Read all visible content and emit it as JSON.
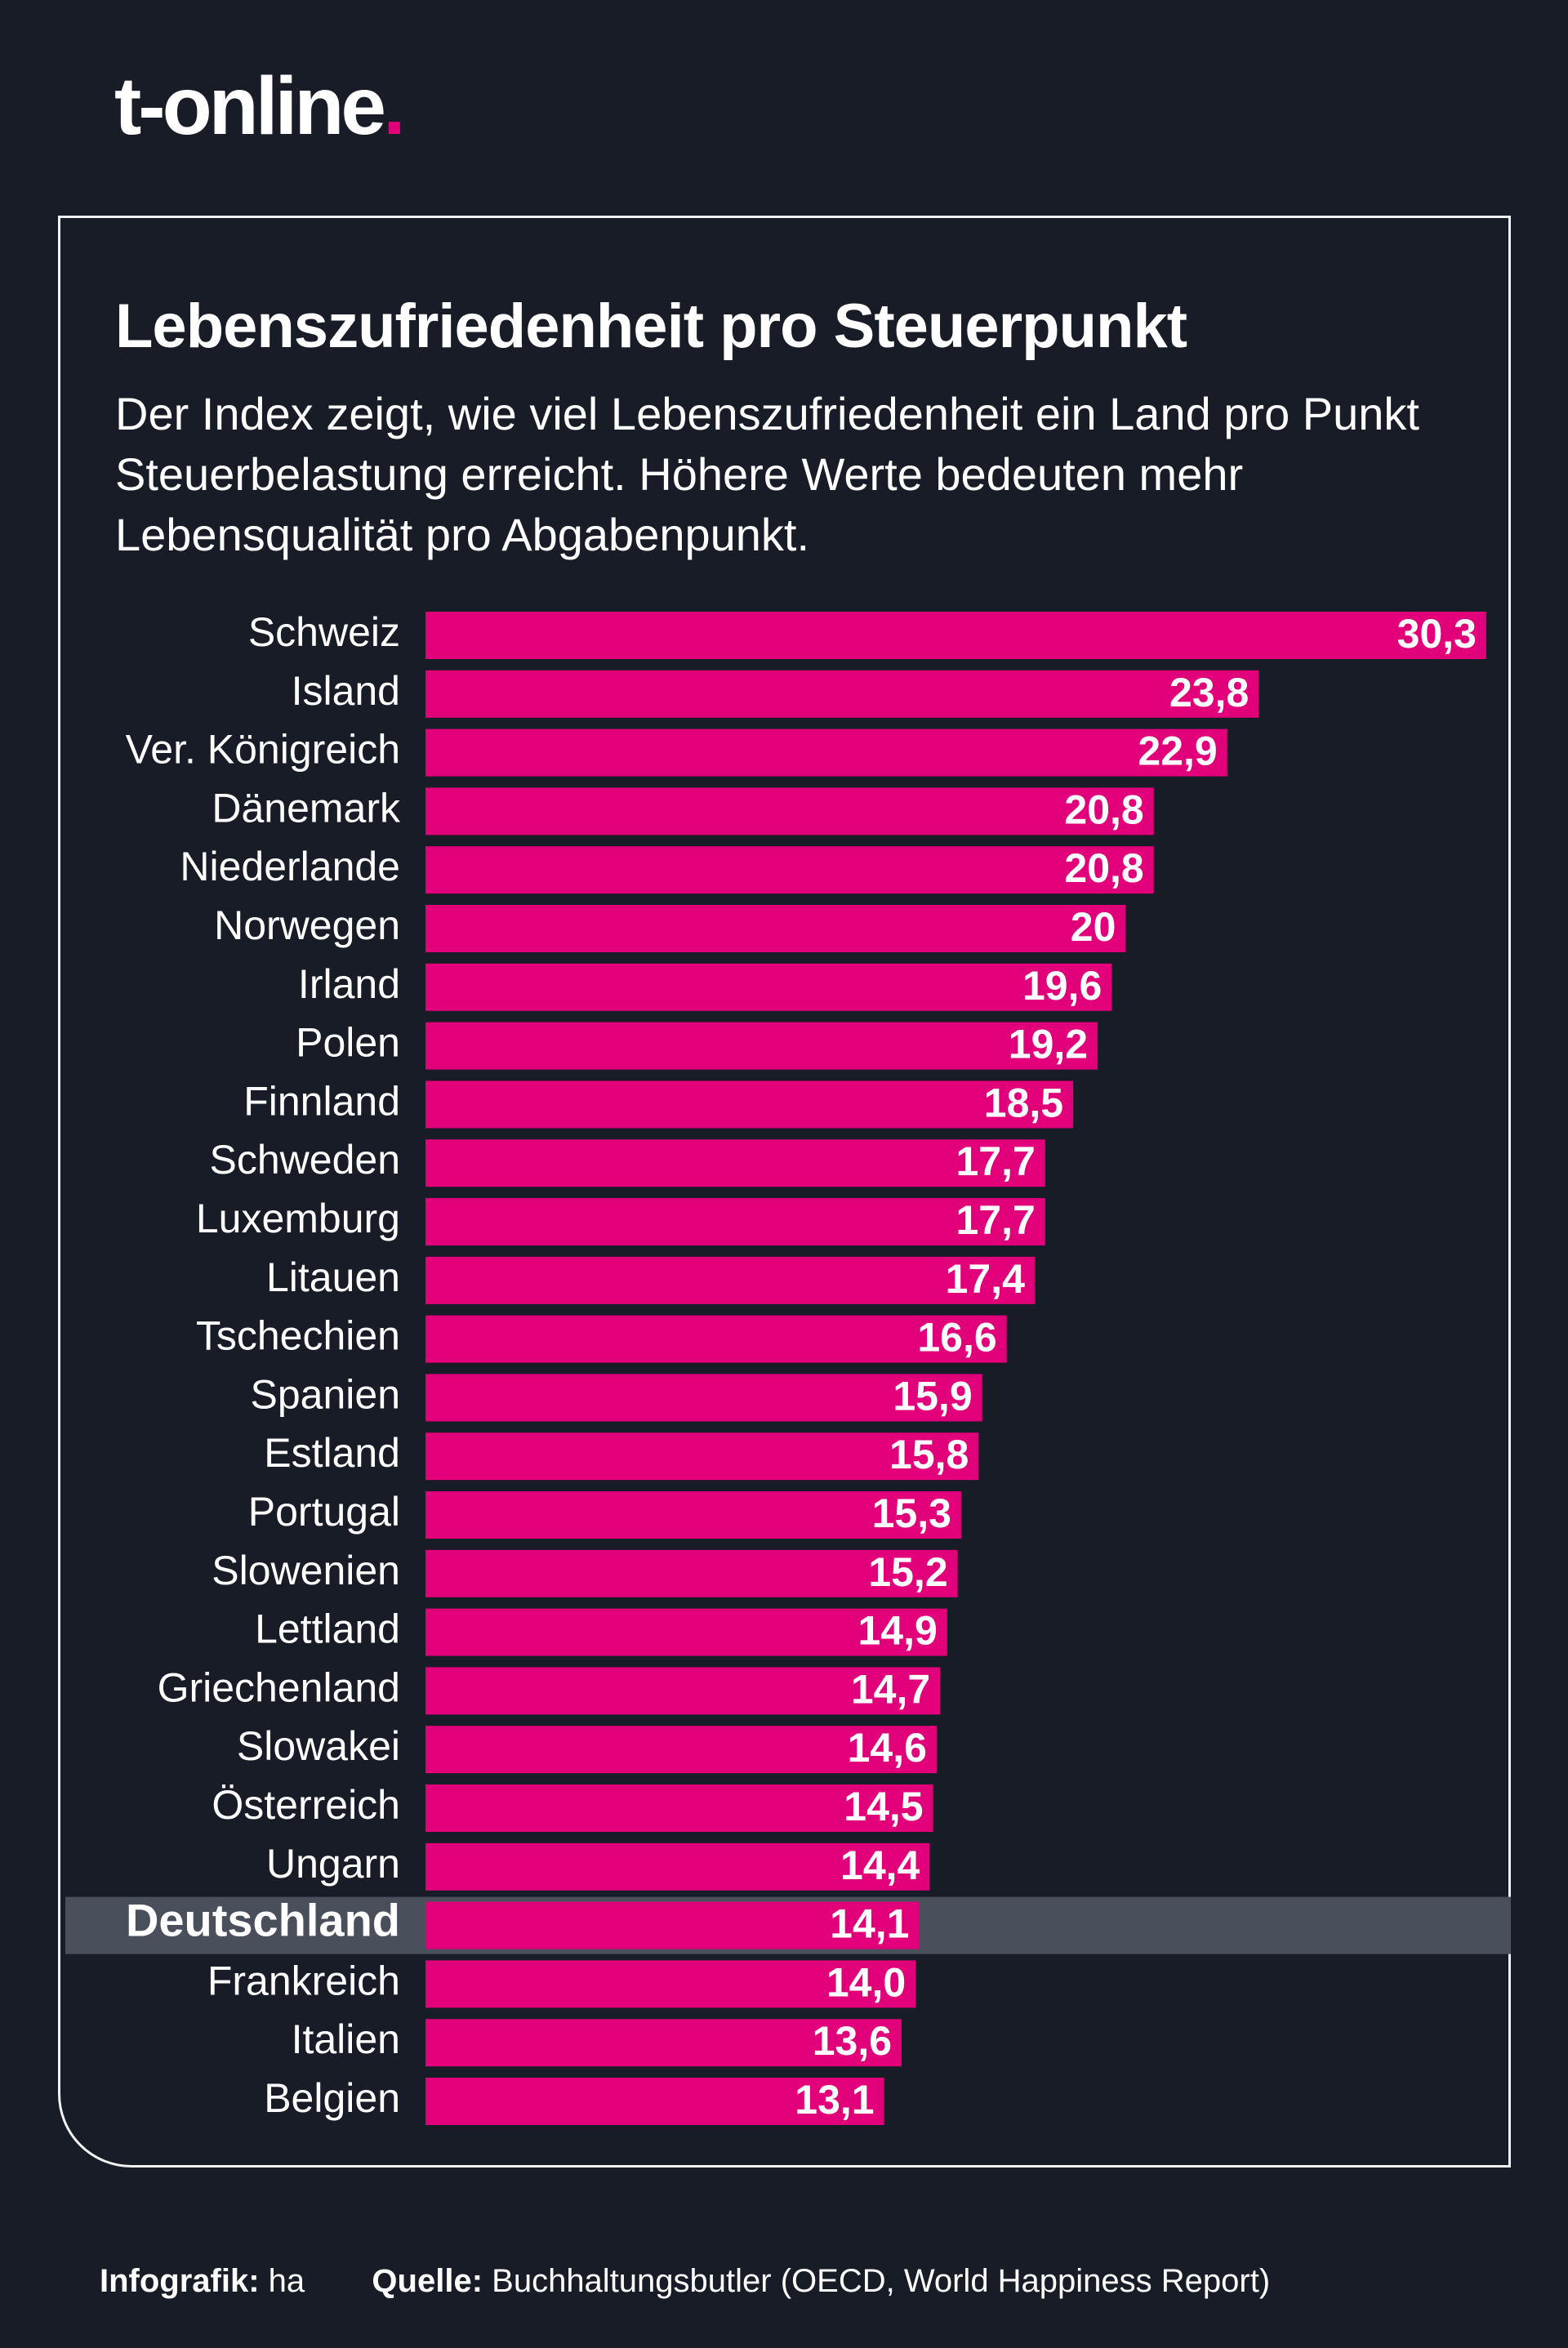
{
  "brand": {
    "name": "t-online",
    "dot": ".",
    "accent": "#e2007a"
  },
  "chart_data": {
    "type": "bar",
    "orientation": "horizontal",
    "title": "Lebenszufriedenheit pro Steuerpunkt",
    "subtitle": "Der Index zeigt, wie viel Lebenszufriedenheit ein Land pro Punkt Steuerbelastung erreicht. Höhere Werte bedeuten mehr Lebensqualität pro Abgabenpunkt.",
    "categories": [
      "Schweiz",
      "Island",
      "Ver. Königreich",
      "Dänemark",
      "Niederlande",
      "Norwegen",
      "Irland",
      "Polen",
      "Finnland",
      "Schweden",
      "Luxemburg",
      "Litauen",
      "Tschechien",
      "Spanien",
      "Estland",
      "Portugal",
      "Slowenien",
      "Lettland",
      "Griechenland",
      "Slowakei",
      "Österreich",
      "Ungarn",
      "Deutschland",
      "Frankreich",
      "Italien",
      "Belgien"
    ],
    "values": [
      30.3,
      23.8,
      22.9,
      20.8,
      20.8,
      20,
      19.6,
      19.2,
      18.5,
      17.7,
      17.7,
      17.4,
      16.6,
      15.9,
      15.8,
      15.3,
      15.2,
      14.9,
      14.7,
      14.6,
      14.5,
      14.4,
      14.1,
      14.0,
      13.6,
      13.1
    ],
    "value_labels": [
      "30,3",
      "23,8",
      "22,9",
      "20,8",
      "20,8",
      "20",
      "19,6",
      "19,2",
      "18,5",
      "17,7",
      "17,7",
      "17,4",
      "16,6",
      "15,9",
      "15,8",
      "15,3",
      "15,2",
      "14,9",
      "14,7",
      "14,6",
      "14,5",
      "14,4",
      "14,1",
      "14,0",
      "13,6",
      "13,1"
    ],
    "highlight": "Deutschland",
    "xlim": [
      0,
      30.3
    ],
    "grid": false,
    "colors": {
      "bar": "#e2007a",
      "highlight_band": "#4a4f5c",
      "background": "#181c26"
    }
  },
  "footer": {
    "credit_label": "Infografik:",
    "credit_value": "ha",
    "source_label": "Quelle:",
    "source_value": "Buchhaltungsbutler (OECD, World Happiness Report)"
  }
}
